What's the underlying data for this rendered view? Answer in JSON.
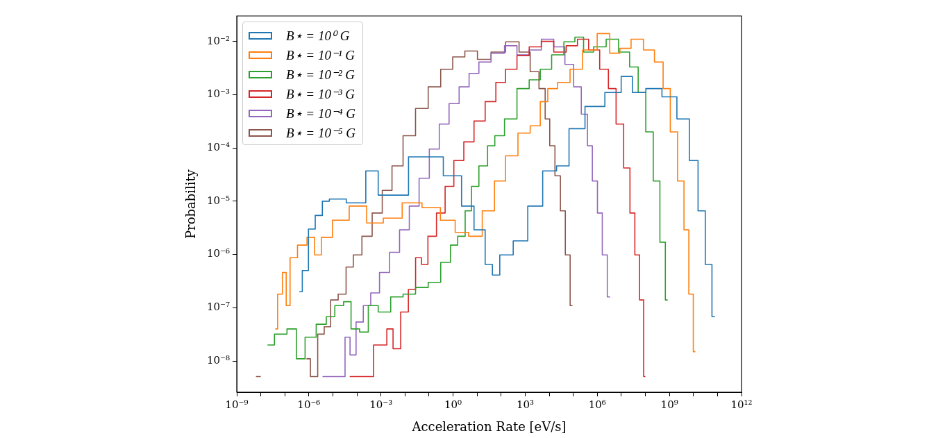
{
  "chart_data": {
    "type": "step",
    "xlabel": "Acceleration Rate [eV/s]",
    "ylabel": "Probability",
    "log": "xy",
    "legend": "top left",
    "xlim": [
      1e-09,
      1000000000000.0
    ],
    "ylim": [
      2.6e-09,
      0.03
    ],
    "xticks": [
      {
        "value": 1e-09,
        "label": "10⁻⁹"
      },
      {
        "value": 1e-08,
        "label": null
      },
      {
        "value": 1e-07,
        "label": null
      },
      {
        "value": 1e-06,
        "label": "10⁻⁶"
      },
      {
        "value": 1e-05,
        "label": null
      },
      {
        "value": 0.0001,
        "label": null
      },
      {
        "value": 0.001,
        "label": "10⁻³"
      },
      {
        "value": 0.01,
        "label": null
      },
      {
        "value": 0.1,
        "label": null
      },
      {
        "value": 1,
        "label": "10⁰"
      },
      {
        "value": 10,
        "label": null
      },
      {
        "value": 100,
        "label": null
      },
      {
        "value": 1000,
        "label": "10³"
      },
      {
        "value": 10000.0,
        "label": null
      },
      {
        "value": 100000.0,
        "label": null
      },
      {
        "value": 1000000.0,
        "label": "10⁶"
      },
      {
        "value": 10000000.0,
        "label": null
      },
      {
        "value": 100000000.0,
        "label": null
      },
      {
        "value": 1000000000.0,
        "label": "10⁹"
      },
      {
        "value": 10000000000.0,
        "label": null
      },
      {
        "value": 100000000000.0,
        "label": null
      },
      {
        "value": 1000000000000.0,
        "label": "10¹²"
      }
    ],
    "yticks": [
      {
        "value": 1e-08,
        "label": "10⁻⁸"
      },
      {
        "value": 1e-07,
        "label": "10⁻⁷"
      },
      {
        "value": 1e-06,
        "label": "10⁻⁶"
      },
      {
        "value": 1e-05,
        "label": "10⁻⁵"
      },
      {
        "value": 0.0001,
        "label": "10⁻⁴"
      },
      {
        "value": 0.001,
        "label": "10⁻³"
      },
      {
        "value": 0.01,
        "label": "10⁻²"
      }
    ],
    "series": [
      {
        "name": "B⋆ = 10⁰ G",
        "color": "#1f77b4",
        "x": [
          4e-07,
          7.1e-07,
          1.3e-06,
          2.6e-06,
          5.1e-06,
          1e-05,
          0.00013,
          0.00042,
          0.0014,
          0.14,
          1.1,
          4.6,
          12,
          39,
          48,
          160,
          630,
          2600,
          11000,
          37000,
          120000.0,
          790000.0,
          5400000.0,
          18000000.0,
          46000000.0,
          240000000.0,
          1000000000.0,
          4200000000.0,
          11000000000.0,
          22000000000.0,
          44000000000.0,
          79000000000.0
        ],
        "values": [
          2e-07,
          5e-07,
          3e-06,
          5.4e-06,
          1e-05,
          1.1e-05,
          9.3e-06,
          3.7e-05,
          1.3e-05,
          6.8e-05,
          3e-05,
          8.1e-06,
          2.9e-06,
          6.5e-07,
          4.1e-07,
          9.8e-07,
          1.8e-06,
          8.1e-06,
          3.7e-05,
          4.6e-05,
          0.00023,
          0.0006,
          0.0011,
          0.0022,
          0.0011,
          0.0013,
          0.00091,
          0.00035,
          5.8e-05,
          6.6e-06,
          6.5e-07,
          6.8e-08
        ]
      },
      {
        "name": "B⋆ = 10⁻¹ G",
        "color": "#ff7f0e",
        "x": [
          4e-08,
          6.3e-08,
          1e-07,
          1.3e-07,
          2.1e-07,
          5.4e-07,
          1.3e-06,
          2.3e-06,
          4.8e-06,
          1.9e-05,
          0.00012,
          0.00054,
          0.0029,
          0.02,
          0.13,
          0.68,
          2.2,
          8.9,
          30,
          93,
          250,
          1000,
          2600,
          6900,
          11000,
          45000,
          120000.0,
          490000.0,
          2000000.0,
          5400000.0,
          14000000.0,
          46000000.0,
          150000000.0,
          380000000.0,
          790000000.0,
          1500000000.0,
          3200000000.0,
          5100000000.0,
          8100000000.0,
          12000000000.0
        ],
        "values": [
          4e-08,
          1.8e-07,
          4.6e-07,
          1.1e-07,
          8.7e-07,
          1.5e-06,
          2.1e-06,
          9.8e-07,
          2.1e-06,
          4.4e-06,
          8.1e-06,
          3.9e-06,
          4.8e-06,
          9.3e-06,
          7.6e-06,
          4.4e-06,
          2.6e-06,
          2.2e-06,
          6.6e-06,
          2.4e-05,
          7.1e-05,
          0.00019,
          0.00026,
          0.00074,
          0.0013,
          0.0017,
          0.003,
          0.0069,
          0.014,
          0.006,
          0.0074,
          0.011,
          0.0069,
          0.0041,
          0.0013,
          0.0002,
          2.4e-05,
          2.9e-06,
          1.8e-07,
          1.5e-08
        ]
      },
      {
        "name": "B⋆ = 10⁻² G",
        "color": "#2ca02c",
        "x": [
          1.9e-08,
          7.2e-08,
          2.1e-07,
          4.4e-07,
          1.1e-06,
          3.7e-06,
          7.6e-06,
          1.9e-05,
          4.1e-05,
          7.9e-05,
          0.00021,
          0.00042,
          0.0014,
          0.0046,
          0.015,
          0.05,
          0.17,
          0.55,
          1.1,
          2.2,
          4.6,
          7.4,
          19,
          39,
          76,
          250,
          830,
          2600,
          6900,
          23000,
          72000,
          190000.0,
          380000.0,
          1300000.0,
          4200000.0,
          14000000.0,
          35000000.0,
          72000000.0,
          150000000.0,
          300000000.0,
          540000000.0,
          850000000.0
        ],
        "values": [
          2e-08,
          3.2e-08,
          4e-08,
          1.1e-08,
          2.8e-08,
          4.9e-08,
          6.8e-08,
          1.1e-07,
          1.3e-07,
          4e-08,
          3.5e-08,
          1.1e-07,
          8.3e-08,
          1.6e-07,
          1.8e-07,
          2.4e-07,
          3e-07,
          7.1e-07,
          1.5e-06,
          2.2e-06,
          6.6e-06,
          1.9e-05,
          4.6e-05,
          0.00011,
          0.00017,
          0.00035,
          0.0013,
          0.0019,
          0.003,
          0.0056,
          0.0098,
          0.012,
          0.0063,
          0.0079,
          0.011,
          0.0063,
          0.0033,
          0.0011,
          0.0002,
          2.4e-05,
          1.7e-06,
          1.4e-07
        ]
      },
      {
        "name": "B⋆ = 10⁻³ G",
        "color": "#d62728",
        "x": [
          5e-05,
          0.00034,
          0.00071,
          0.0014,
          0.0022,
          0.0046,
          0.0095,
          0.02,
          0.038,
          0.062,
          0.13,
          0.32,
          0.68,
          1.7,
          4.6,
          12,
          39,
          93,
          250,
          830,
          2600,
          8500,
          28000,
          93000,
          240000.0,
          790000.0,
          2000000.0,
          4200000.0,
          8700000.0,
          18000000.0,
          29000000.0,
          46000000.0,
          72000000.0,
          100000000.0
        ],
        "values": [
          5.1e-09,
          5.1e-09,
          2e-08,
          2e-08,
          4e-08,
          1.7e-08,
          8.3e-08,
          2.2e-07,
          8.7e-07,
          6.5e-07,
          2.2e-06,
          6e-06,
          1.9e-05,
          5.8e-05,
          0.00013,
          0.00032,
          0.00074,
          0.0017,
          0.003,
          0.0054,
          0.0079,
          0.01,
          0.0063,
          0.0083,
          0.011,
          0.0069,
          0.003,
          0.0013,
          0.00028,
          4.2e-05,
          6e-06,
          9.8e-07,
          1.4e-07,
          5.1e-09
        ]
      },
      {
        "name": "B⋆ = 10⁻⁴ G",
        "color": "#9467bd",
        "x": [
          3.7e-06,
          2.5e-05,
          4.1e-05,
          6.5e-05,
          0.00013,
          0.00026,
          0.00054,
          0.0014,
          0.0037,
          0.0095,
          0.024,
          0.062,
          0.17,
          0.42,
          1.1,
          2.9,
          7.4,
          19,
          76,
          250,
          830,
          2600,
          8500,
          28000,
          72000,
          150000.0,
          310000.0,
          490000.0,
          790000.0,
          1300000.0,
          2000000.0,
          3400000.0
        ],
        "values": [
          5.1e-09,
          5.1e-09,
          2.8e-08,
          1.3e-08,
          5.4e-08,
          1.1e-07,
          1.9e-07,
          4.6e-07,
          1.1e-06,
          2.9e-06,
          8.1e-06,
          2.7e-05,
          9.5e-05,
          0.00028,
          0.00068,
          0.0014,
          0.0025,
          0.0041,
          0.006,
          0.0083,
          0.0056,
          0.0069,
          0.011,
          0.0079,
          0.0037,
          0.0014,
          0.00043,
          0.00011,
          2.4e-05,
          6e-06,
          9.8e-07,
          1.6e-07
        ]
      },
      {
        "name": "B⋆ = 10⁻⁵ G",
        "color": "#8c564b",
        "x": [
          6.3e-09,
          1e-08,
          1.3e-08,
          7.9e-07,
          1.7e-06,
          3.2e-06,
          5.9e-06,
          1.1e-05,
          2.5e-05,
          5e-05,
          0.0001,
          0.00026,
          0.00071,
          0.0018,
          0.0046,
          0.015,
          0.05,
          0.17,
          0.55,
          1.7,
          5.6,
          19,
          76,
          310,
          1000,
          2600,
          5400,
          8500,
          13000,
          23000,
          37000,
          59000,
          93000
        ],
        "values": [
          5.1e-09,
          5.1e-09,
          null,
          1.1e-08,
          5.1e-09,
          3.2e-08,
          4.4e-08,
          1.4e-07,
          1.8e-07,
          5.8e-07,
          9.8e-07,
          2.2e-06,
          6e-06,
          1.6e-05,
          4.6e-05,
          0.00017,
          0.00055,
          0.0014,
          0.003,
          0.0051,
          0.0066,
          0.0046,
          0.0063,
          0.0098,
          0.0063,
          0.0027,
          0.0013,
          0.00035,
          0.00011,
          3e-05,
          6.6e-06,
          9.8e-07,
          1.1e-07
        ]
      }
    ]
  }
}
